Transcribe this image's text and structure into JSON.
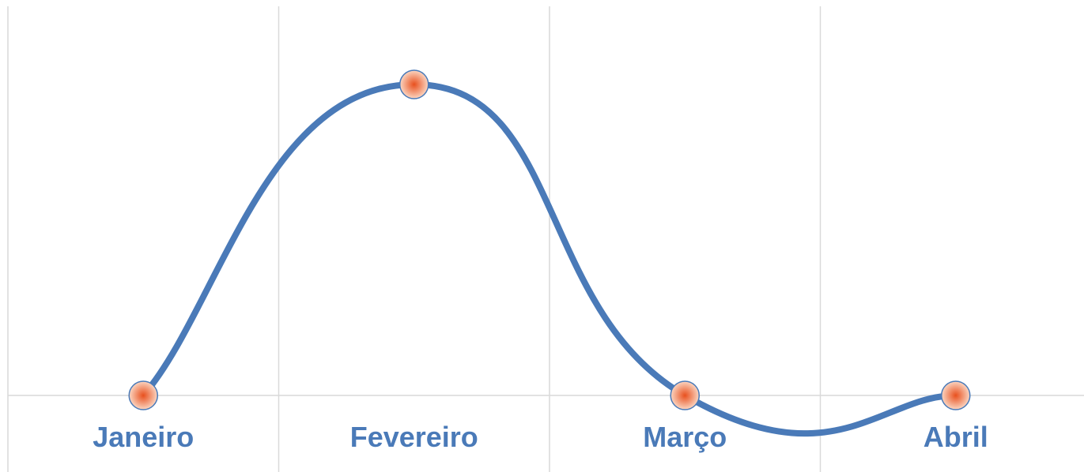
{
  "chart_data": {
    "type": "line",
    "smooth": true,
    "categories": [
      "Janeiro",
      "Fevereiro",
      "Março",
      "Abril"
    ],
    "series": [
      {
        "values": [
          0,
          1,
          0,
          0
        ]
      }
    ],
    "ylim": [
      -0.1,
      1.1
    ],
    "grid": "vertical",
    "legend": "none",
    "colors": {
      "line": "#4a7ab8",
      "marker_center": "#e8501e",
      "marker_edge": "#fbd6c2",
      "marker_stroke": "#4a7ab8",
      "grid": "#d9d9d9",
      "label": "#4a7ab8"
    }
  }
}
